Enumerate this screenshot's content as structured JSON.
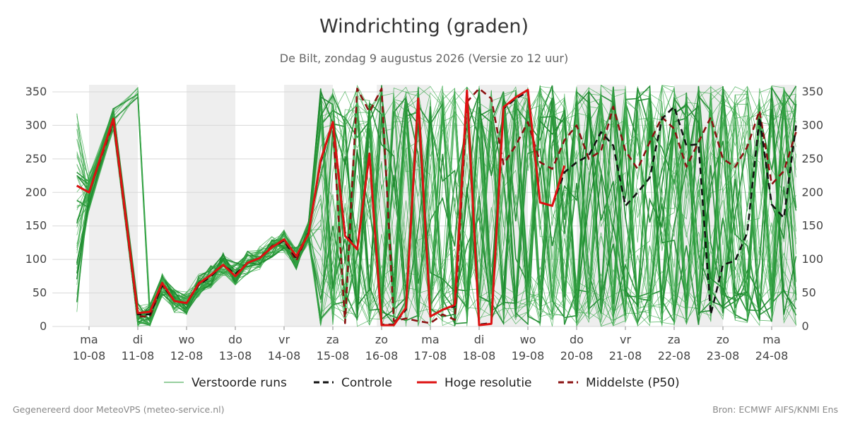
{
  "header": {
    "title": "Windrichting (graden)",
    "subtitle": "De Bilt, zondag  9 augustus 2026 (Versie zo 12 uur)"
  },
  "footer": {
    "left": "Gegenereerd door MeteoVPS (meteo-service.nl)",
    "right": "Bron: ECMWF AIFS/KNMI Ens"
  },
  "chart_data": {
    "type": "line",
    "title": "Windrichting (graden)",
    "ylim": [
      0,
      360
    ],
    "yticks": [
      0,
      50,
      100,
      150,
      200,
      250,
      300,
      350
    ],
    "x_unit": "days since 10-08 00 UTC",
    "xlim": [
      -0.75,
      14.5
    ],
    "xticks": [
      {
        "day": "ma",
        "date": "10-08"
      },
      {
        "day": "di",
        "date": "11-08"
      },
      {
        "day": "wo",
        "date": "12-08"
      },
      {
        "day": "do",
        "date": "13-08"
      },
      {
        "day": "vr",
        "date": "14-08"
      },
      {
        "day": "za",
        "date": "15-08"
      },
      {
        "day": "zo",
        "date": "16-08"
      },
      {
        "day": "ma",
        "date": "17-08"
      },
      {
        "day": "di",
        "date": "18-08"
      },
      {
        "day": "wo",
        "date": "19-08"
      },
      {
        "day": "do",
        "date": "20-08"
      },
      {
        "day": "vr",
        "date": "21-08"
      },
      {
        "day": "za",
        "date": "22-08"
      },
      {
        "day": "zo",
        "date": "23-08"
      },
      {
        "day": "ma",
        "date": "24-08"
      }
    ],
    "grid": true,
    "legend_placement": "bottom",
    "series": [
      {
        "name": "Controle",
        "color": "#111111",
        "style": "dashed",
        "points": [
          [
            -0.25,
            210
          ],
          [
            0,
            200
          ],
          [
            0.5,
            310
          ],
          [
            1,
            18
          ],
          [
            1.25,
            18
          ],
          [
            1.5,
            62
          ],
          [
            1.75,
            38
          ],
          [
            2,
            35
          ],
          [
            2.25,
            62
          ],
          [
            2.5,
            75
          ],
          [
            2.75,
            92
          ],
          [
            3,
            78
          ],
          [
            3.25,
            95
          ],
          [
            3.5,
            102
          ],
          [
            3.75,
            118
          ],
          [
            4,
            128
          ],
          [
            4.25,
            102
          ],
          [
            4.5,
            140
          ],
          [
            4.75,
            245
          ],
          [
            5,
            305
          ],
          [
            5.25,
            140
          ],
          [
            5.5,
            115
          ],
          [
            5.75,
            255
          ],
          [
            6,
            3
          ],
          [
            6.25,
            3
          ],
          [
            6.5,
            25
          ],
          [
            6.75,
            340
          ],
          [
            7,
            15
          ],
          [
            7.25,
            25
          ],
          [
            7.5,
            30
          ],
          [
            7.75,
            352
          ],
          [
            8,
            3
          ],
          [
            8.25,
            5
          ],
          [
            8.5,
            325
          ],
          [
            8.75,
            340
          ],
          [
            9,
            350
          ],
          [
            9.25,
            185
          ],
          [
            9.5,
            180
          ],
          [
            9.75,
            230
          ],
          [
            10,
            245
          ],
          [
            10.25,
            255
          ],
          [
            10.5,
            290
          ],
          [
            10.75,
            270
          ],
          [
            11,
            180
          ],
          [
            11.25,
            200
          ],
          [
            11.5,
            222
          ],
          [
            11.75,
            310
          ],
          [
            12,
            328
          ],
          [
            12.25,
            270
          ],
          [
            12.5,
            272
          ],
          [
            12.75,
            18
          ],
          [
            13,
            92
          ],
          [
            13.25,
            98
          ],
          [
            13.5,
            140
          ],
          [
            13.75,
            312
          ],
          [
            14,
            182
          ],
          [
            14.25,
            162
          ],
          [
            14.5,
            300
          ]
        ]
      },
      {
        "name": "Hoge resolutie",
        "color": "#dd1111",
        "style": "solid",
        "points": [
          [
            -0.25,
            210
          ],
          [
            0,
            200
          ],
          [
            0.5,
            310
          ],
          [
            1,
            20
          ],
          [
            1.25,
            22
          ],
          [
            1.5,
            65
          ],
          [
            1.75,
            38
          ],
          [
            2,
            35
          ],
          [
            2.25,
            64
          ],
          [
            2.5,
            77
          ],
          [
            2.75,
            92
          ],
          [
            3,
            75
          ],
          [
            3.25,
            95
          ],
          [
            3.5,
            102
          ],
          [
            3.75,
            118
          ],
          [
            4,
            130
          ],
          [
            4.25,
            105
          ],
          [
            4.5,
            138
          ],
          [
            4.75,
            248
          ],
          [
            5,
            305
          ],
          [
            5.25,
            135
          ],
          [
            5.5,
            115
          ],
          [
            5.75,
            258
          ],
          [
            6,
            2
          ],
          [
            6.25,
            2
          ],
          [
            6.5,
            28
          ],
          [
            6.75,
            340
          ],
          [
            7,
            15
          ],
          [
            7.25,
            25
          ],
          [
            7.5,
            32
          ],
          [
            7.75,
            352
          ],
          [
            8,
            2
          ],
          [
            8.25,
            4
          ],
          [
            8.5,
            327
          ],
          [
            8.75,
            342
          ],
          [
            9,
            353
          ],
          [
            9.25,
            185
          ],
          [
            9.5,
            180
          ],
          [
            9.75,
            240
          ]
        ]
      },
      {
        "name": "Middelste (P50)",
        "color": "#8b1111",
        "style": "dashed",
        "points": [
          [
            -0.25,
            210
          ],
          [
            0,
            200
          ],
          [
            0.5,
            305
          ],
          [
            1,
            15
          ],
          [
            1.25,
            15
          ],
          [
            1.5,
            62
          ],
          [
            1.75,
            38
          ],
          [
            2,
            35
          ],
          [
            2.25,
            65
          ],
          [
            2.5,
            77
          ],
          [
            2.75,
            92
          ],
          [
            3,
            75
          ],
          [
            3.25,
            95
          ],
          [
            3.5,
            102
          ],
          [
            3.75,
            120
          ],
          [
            4,
            128
          ],
          [
            4.25,
            98
          ],
          [
            4.5,
            140
          ],
          [
            4.75,
            248
          ],
          [
            5,
            302
          ],
          [
            5.25,
            5
          ],
          [
            5.5,
            355
          ],
          [
            5.75,
            320
          ],
          [
            6,
            355
          ],
          [
            6.25,
            8
          ],
          [
            6.5,
            12
          ],
          [
            6.75,
            8
          ],
          [
            7,
            5
          ],
          [
            7.25,
            18
          ],
          [
            7.5,
            10
          ],
          [
            7.75,
            335
          ],
          [
            8,
            355
          ],
          [
            8.25,
            340
          ],
          [
            8.5,
            242
          ],
          [
            8.75,
            270
          ],
          [
            9,
            305
          ],
          [
            9.25,
            245
          ],
          [
            9.5,
            235
          ],
          [
            9.75,
            278
          ],
          [
            10,
            300
          ],
          [
            10.25,
            250
          ],
          [
            10.5,
            262
          ],
          [
            10.75,
            328
          ],
          [
            11,
            262
          ],
          [
            11.25,
            235
          ],
          [
            11.5,
            275
          ],
          [
            11.75,
            312
          ],
          [
            12,
            295
          ],
          [
            12.25,
            238
          ],
          [
            12.5,
            275
          ],
          [
            12.75,
            312
          ],
          [
            13,
            250
          ],
          [
            13.25,
            238
          ],
          [
            13.5,
            268
          ],
          [
            13.75,
            322
          ],
          [
            14,
            212
          ],
          [
            14.25,
            232
          ],
          [
            14.5,
            290
          ]
        ]
      }
    ],
    "ensemble": {
      "name": "Verstoorde runs",
      "color": "#2e9e3e",
      "member_count": 50,
      "envelope": [
        {
          "x": -0.25,
          "min": 20,
          "max": 320
        },
        {
          "x": 0,
          "min": 190,
          "max": 215
        },
        {
          "x": 0.5,
          "min": 280,
          "max": 330
        },
        {
          "x": 1,
          "min": 10,
          "max": 360
        },
        {
          "x": 1.5,
          "min": 30,
          "max": 100
        },
        {
          "x": 2,
          "min": 20,
          "max": 55
        },
        {
          "x": 2.5,
          "min": 50,
          "max": 95
        },
        {
          "x": 3,
          "min": 65,
          "max": 155
        },
        {
          "x": 3.5,
          "min": 85,
          "max": 130
        },
        {
          "x": 4,
          "min": 90,
          "max": 300
        },
        {
          "x": 4.5,
          "min": 100,
          "max": 200
        },
        {
          "x": 5,
          "min": 0,
          "max": 360
        },
        {
          "x": 14.5,
          "min": 0,
          "max": 360
        }
      ]
    },
    "shaded_weekend_like_bands": [
      [
        0,
        1
      ],
      [
        2,
        3
      ],
      [
        4,
        5
      ],
      [
        5,
        6
      ],
      [
        6,
        7
      ],
      [
        8,
        9
      ],
      [
        10,
        11
      ],
      [
        12,
        13
      ],
      [
        14,
        14.5
      ]
    ]
  },
  "legend": [
    {
      "label": "Verstoorde runs",
      "color": "#2e9e3e",
      "style": "thin"
    },
    {
      "label": "Controle",
      "color": "#111111",
      "style": "dashed"
    },
    {
      "label": "Hoge resolutie",
      "color": "#dd1111",
      "style": "solid"
    },
    {
      "label": "Middelste (P50)",
      "color": "#8b1111",
      "style": "dashed"
    }
  ]
}
